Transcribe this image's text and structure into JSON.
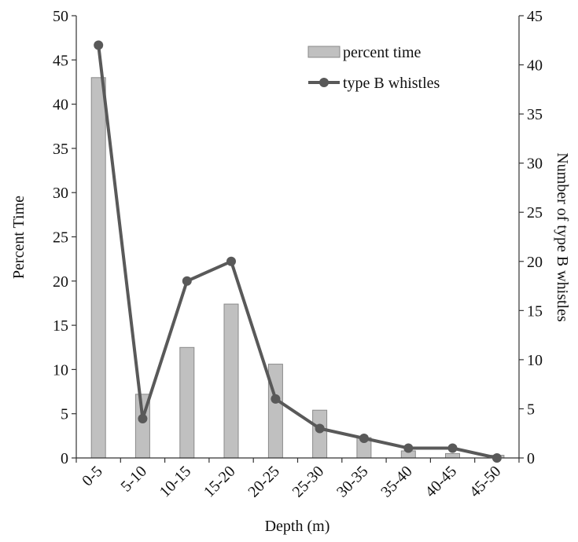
{
  "chart_data": {
    "type": "bar",
    "title": "",
    "xlabel": "Depth (m)",
    "ylabel": "Percent Time",
    "y2label": "Number of type B whistles",
    "categories": [
      "0-5",
      "5-10",
      "10-15",
      "15-20",
      "20-25",
      "25-30",
      "30-35",
      "35-40",
      "40-45",
      "45-50"
    ],
    "ylim": [
      0,
      50
    ],
    "y2lim": [
      0,
      45
    ],
    "yticks": [
      "0",
      "5",
      "10",
      "15",
      "20",
      "25",
      "30",
      "35",
      "40",
      "45",
      "50"
    ],
    "y2ticks": [
      "0",
      "5",
      "10",
      "15",
      "20",
      "25",
      "30",
      "35",
      "40",
      "45"
    ],
    "series": [
      {
        "name": "percent time",
        "type": "bar",
        "axis": "left",
        "color": "#c0c0c0",
        "values": [
          43.0,
          7.2,
          12.5,
          17.4,
          10.6,
          5.4,
          2.3,
          0.8,
          0.5,
          0.3
        ]
      },
      {
        "name": "type B whistles",
        "type": "line",
        "axis": "right",
        "color": "#595959",
        "values": [
          42,
          4,
          18,
          20,
          6,
          3,
          2,
          1,
          1,
          0
        ]
      }
    ],
    "grid": false,
    "legend_position": "top-right"
  }
}
